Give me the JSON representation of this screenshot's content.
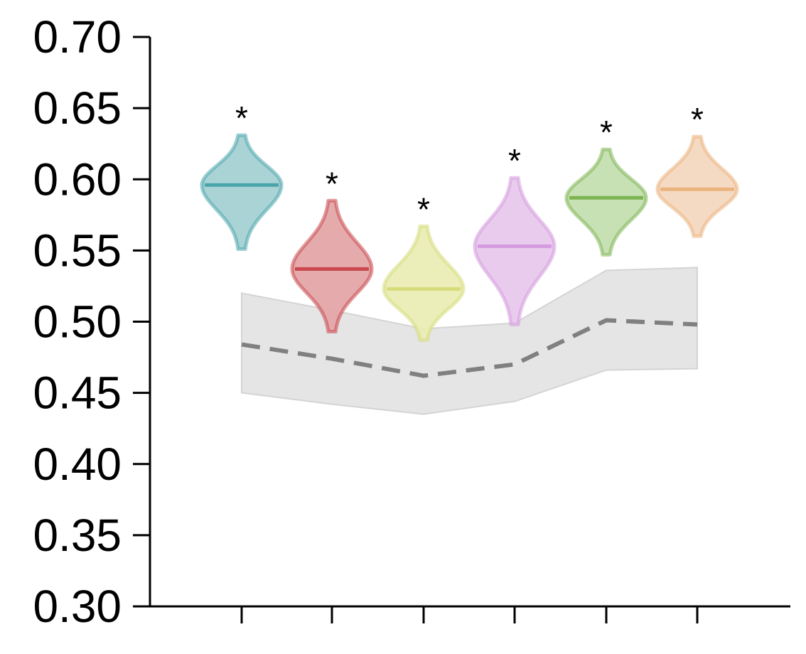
{
  "chart_data": {
    "type": "violin",
    "title": "",
    "xlabel": "",
    "ylabel": "",
    "ylim": [
      0.3,
      0.7
    ],
    "yticks": [
      "0.30",
      "0.35",
      "0.40",
      "0.45",
      "0.50",
      "0.55",
      "0.60",
      "0.65",
      "0.70"
    ],
    "x_tick_count": 6,
    "grid": false,
    "legend": "none",
    "violins": [
      {
        "center": 0.596,
        "min": 0.551,
        "max": 0.631,
        "half_width_top": 0.1,
        "significance": "*",
        "color": "#4aa5ab",
        "fill": "#a5d1d4"
      },
      {
        "center": 0.537,
        "min": 0.493,
        "max": 0.585,
        "half_width_top": 0.1,
        "significance": "*",
        "color": "#c9474d",
        "fill": "#e4a5a8"
      },
      {
        "center": 0.523,
        "min": 0.487,
        "max": 0.567,
        "half_width_top": 0.1,
        "significance": "*",
        "color": "#d6dc7c",
        "fill": "#eaedb4"
      },
      {
        "center": 0.553,
        "min": 0.498,
        "max": 0.601,
        "half_width_top": 0.1,
        "significance": "*",
        "color": "#d59bdf",
        "fill": "#e8c9ec"
      },
      {
        "center": 0.587,
        "min": 0.547,
        "max": 0.621,
        "half_width_top": 0.1,
        "significance": "*",
        "color": "#7db453",
        "fill": "#c5dfb0"
      },
      {
        "center": 0.593,
        "min": 0.56,
        "max": 0.63,
        "half_width_top": 0.1,
        "significance": "*",
        "color": "#ebb37e",
        "fill": "#f4d8c0"
      }
    ],
    "baseline": {
      "mean": [
        0.484,
        0.474,
        0.462,
        0.47,
        0.501,
        0.498
      ],
      "upper": [
        0.52,
        0.508,
        0.495,
        0.499,
        0.536,
        0.538
      ],
      "lower": [
        0.45,
        0.442,
        0.435,
        0.444,
        0.466,
        0.467
      ],
      "line_color": "#808080",
      "band_color": "#e5e5e5"
    }
  }
}
